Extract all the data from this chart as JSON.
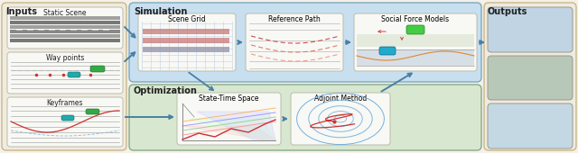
{
  "bg_color": "#f5f0e8",
  "sim_bg_color": "#c8dff0",
  "opt_bg_color": "#d8e8d0",
  "input_bg_color": "#f0ebe0",
  "output_bg_color": "#f0ebe0",
  "arrow_color": "#4a7fa5",
  "header_fontsize": 7.0,
  "label_fontsize": 5.5,
  "inputs_label": "Inputs",
  "outputs_label": "Outputs",
  "simulation_label": "Simulation",
  "optimization_label": "Optimization",
  "input_boxes": [
    "Static Scene",
    "Way points",
    "Keyframes"
  ],
  "sim_boxes": [
    "Scene Grid",
    "Reference Path",
    "Social Force Models"
  ],
  "opt_boxes": [
    "State-Time Space",
    "Adjoint Method"
  ]
}
